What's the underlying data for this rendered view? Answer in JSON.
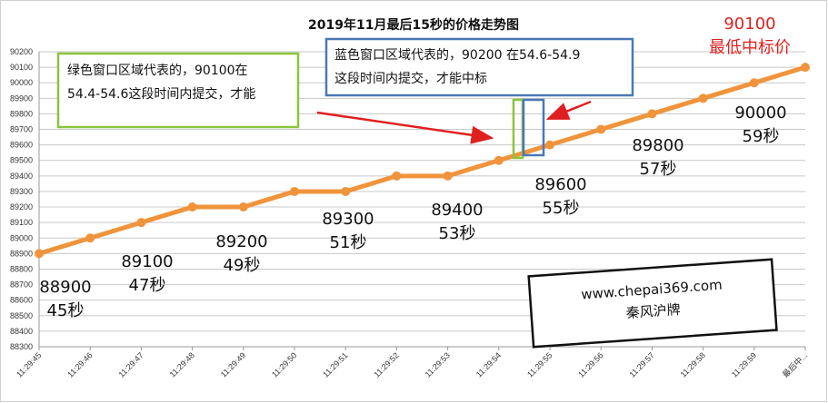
{
  "chart_data": {
    "type": "line",
    "title": "2019年11月最后15秒的价格走势图",
    "categories": [
      "11:29:45",
      "11:29:46",
      "11:29:47",
      "11:29:48",
      "11:29:49",
      "11:29:50",
      "11:29:51",
      "11:29:52",
      "11:29:53",
      "11:29:54",
      "11:29:55",
      "11:29:56",
      "11:29:57",
      "11:29:58",
      "11:29:59",
      "最后中..."
    ],
    "series": [
      {
        "values": [
          88900,
          89000,
          89100,
          89200,
          89200,
          89300,
          89300,
          89400,
          89400,
          89500,
          89600,
          89700,
          89800,
          89900,
          90000,
          90100
        ]
      }
    ],
    "ylim": [
      88300,
      90200
    ],
    "ytick_step": 100,
    "grid": true,
    "line_color": "#f0943c",
    "annotations": [
      {
        "lines": [
          "88900",
          "45秒"
        ],
        "category": "11:29:45",
        "color": "#111111"
      },
      {
        "lines": [
          "89100",
          "47秒"
        ],
        "category": "11:29:47",
        "color": "#111111"
      },
      {
        "lines": [
          "89200",
          "49秒"
        ],
        "category": "11:29:49",
        "color": "#111111"
      },
      {
        "lines": [
          "89300",
          "51秒"
        ],
        "category": "11:29:51",
        "color": "#111111"
      },
      {
        "lines": [
          "89400",
          "53秒"
        ],
        "category": "11:29:53",
        "color": "#111111"
      },
      {
        "lines": [
          "89600",
          "55秒"
        ],
        "category": "11:29:55",
        "color": "#111111"
      },
      {
        "lines": [
          "89800",
          "57秒"
        ],
        "category": "11:29:57",
        "color": "#111111"
      },
      {
        "lines": [
          "90000",
          "59秒"
        ],
        "category": "11:29:59",
        "color": "#111111"
      },
      {
        "lines": [
          "90100",
          "最低中标价"
        ],
        "category": "最后中...",
        "color": "#e02020"
      }
    ],
    "note_green": {
      "lines": [
        "绿色窗口区域代表的，90100在",
        "54.4-54.6这段时间内提交，才能"
      ],
      "border_color": "#8cc43c"
    },
    "note_blue": {
      "lines": [
        "蓝色窗口区域代表的，90200 在54.6-54.9",
        "这段时间内提交，才能中标"
      ],
      "border_color": "#4a78b4"
    },
    "watermark": [
      "www.chepai369.com",
      "秦风沪牌"
    ]
  }
}
